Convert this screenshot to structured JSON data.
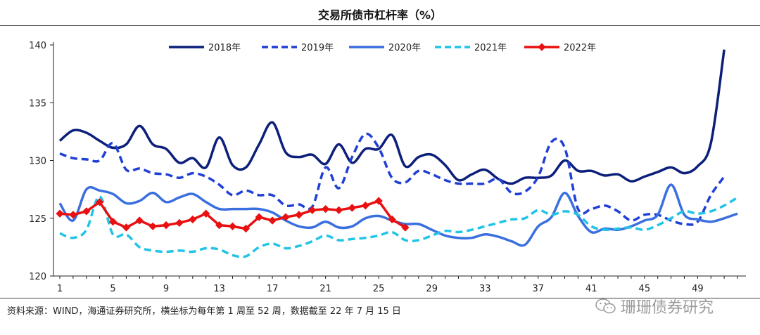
{
  "title": "交易所债市杠杆率（%）",
  "source": "资料来源：WIND，海通证券研究所，横坐标为每年第 1 周至 52 周，数据截至 22 年 7 月 15 日",
  "watermark": "珊珊债券研究",
  "chart_data": {
    "type": "line",
    "title": "交易所债市杠杆率（%）",
    "xlabel": "",
    "ylabel": "",
    "ylim": [
      120,
      140
    ],
    "xlim": [
      1,
      52
    ],
    "x_ticks": [
      1,
      5,
      9,
      13,
      17,
      21,
      25,
      29,
      33,
      37,
      41,
      45,
      49
    ],
    "y_ticks": [
      120,
      125,
      130,
      135,
      140
    ],
    "grid": false,
    "legend_position": "top",
    "series": [
      {
        "name": "2018年",
        "color": "#0c1f7a",
        "style": "solid",
        "x": [
          1,
          2,
          3,
          4,
          5,
          6,
          7,
          8,
          9,
          10,
          11,
          12,
          13,
          14,
          15,
          16,
          17,
          18,
          19,
          20,
          21,
          22,
          23,
          24,
          25,
          26,
          27,
          28,
          29,
          30,
          31,
          32,
          33,
          34,
          35,
          36,
          37,
          38,
          39,
          40,
          41,
          42,
          43,
          44,
          45,
          46,
          47,
          48,
          49,
          50,
          51
        ],
        "values": [
          131.7,
          132.6,
          132.4,
          131.7,
          131.1,
          131.4,
          133.0,
          131.4,
          131.0,
          129.8,
          130.2,
          129.4,
          132.0,
          129.6,
          129.4,
          131.4,
          133.3,
          130.7,
          130.3,
          130.5,
          129.7,
          131.4,
          129.8,
          131.0,
          131.0,
          132.2,
          129.5,
          130.3,
          130.5,
          129.6,
          128.3,
          128.8,
          129.2,
          128.4,
          128.0,
          128.5,
          128.5,
          128.7,
          130.0,
          129.1,
          129.1,
          128.7,
          128.8,
          128.2,
          128.6,
          129.0,
          129.4,
          128.9,
          129.5,
          131.5,
          139.6
        ]
      },
      {
        "name": "2019年",
        "color": "#1f3fd6",
        "style": "dashed",
        "x": [
          1,
          2,
          3,
          4,
          5,
          6,
          7,
          8,
          9,
          10,
          11,
          12,
          13,
          14,
          15,
          16,
          17,
          18,
          19,
          20,
          21,
          22,
          23,
          24,
          25,
          26,
          27,
          28,
          29,
          30,
          31,
          32,
          33,
          34,
          35,
          36,
          37,
          38,
          39,
          40,
          41,
          42,
          43,
          44,
          45,
          46,
          47,
          48,
          49,
          50,
          51
        ],
        "values": [
          130.6,
          130.2,
          130.1,
          130.0,
          131.5,
          129.2,
          129.3,
          128.9,
          128.8,
          128.5,
          128.9,
          128.6,
          127.9,
          127.0,
          127.4,
          127.0,
          127.0,
          126.1,
          126.2,
          126.0,
          129.4,
          127.6,
          130.3,
          132.3,
          131.1,
          128.5,
          128.1,
          129.1,
          128.8,
          128.3,
          128.0,
          128.0,
          128.0,
          128.4,
          127.2,
          127.3,
          128.6,
          131.6,
          131.1,
          125.8,
          125.8,
          126.1,
          125.6,
          124.8,
          125.3,
          125.3,
          124.8,
          124.5,
          124.7,
          127.0,
          128.6
        ]
      },
      {
        "name": "2020年",
        "color": "#3a6fe0",
        "style": "solid",
        "x": [
          1,
          2,
          3,
          4,
          5,
          6,
          7,
          8,
          9,
          10,
          11,
          12,
          13,
          14,
          15,
          16,
          17,
          18,
          19,
          20,
          21,
          22,
          23,
          24,
          25,
          26,
          27,
          28,
          29,
          30,
          31,
          32,
          33,
          34,
          35,
          36,
          37,
          38,
          39,
          40,
          41,
          42,
          43,
          44,
          45,
          46,
          47,
          48,
          49,
          50,
          51,
          52
        ],
        "values": [
          126.3,
          124.8,
          127.5,
          127.4,
          127.1,
          126.3,
          126.5,
          127.2,
          126.4,
          126.8,
          127.1,
          126.4,
          125.8,
          125.8,
          125.8,
          125.8,
          125.5,
          124.8,
          124.3,
          124.2,
          124.7,
          124.2,
          124.3,
          125.0,
          125.2,
          124.8,
          124.5,
          124.5,
          124.0,
          123.5,
          123.3,
          123.3,
          123.6,
          123.4,
          123.0,
          122.7,
          124.3,
          125.1,
          127.2,
          125.2,
          123.8,
          124.1,
          124.0,
          124.3,
          124.8,
          125.3,
          127.9,
          125.3,
          124.9,
          124.7,
          125.0,
          125.4
        ]
      },
      {
        "name": "2021年",
        "color": "#21c4e6",
        "style": "dashed",
        "x": [
          1,
          2,
          3,
          4,
          5,
          6,
          7,
          8,
          9,
          10,
          11,
          12,
          13,
          14,
          15,
          16,
          17,
          18,
          19,
          20,
          21,
          22,
          23,
          24,
          25,
          26,
          27,
          28,
          29,
          30,
          31,
          32,
          33,
          34,
          35,
          36,
          37,
          38,
          39,
          40,
          41,
          42,
          43,
          44,
          45,
          46,
          47,
          48,
          49,
          50,
          51,
          52
        ],
        "values": [
          123.7,
          123.3,
          124.0,
          126.9,
          123.6,
          123.6,
          122.5,
          122.2,
          122.1,
          122.2,
          122.1,
          122.4,
          122.3,
          121.8,
          121.7,
          122.5,
          122.8,
          122.4,
          122.6,
          123.0,
          123.5,
          123.1,
          123.2,
          123.3,
          123.5,
          123.8,
          123.1,
          123.1,
          123.5,
          123.9,
          123.8,
          124.0,
          124.3,
          124.6,
          124.9,
          125.0,
          125.7,
          125.3,
          125.6,
          125.3,
          124.3,
          124.0,
          124.1,
          124.2,
          124.0,
          124.4,
          125.0,
          125.6,
          125.4,
          125.6,
          126.1,
          126.8
        ]
      },
      {
        "name": "2022年",
        "color": "#e81010",
        "style": "solid-markers",
        "x": [
          1,
          2,
          3,
          4,
          5,
          6,
          7,
          8,
          9,
          10,
          11,
          12,
          13,
          14,
          15,
          16,
          17,
          18,
          19,
          20,
          21,
          22,
          23,
          24,
          25,
          26,
          27
        ],
        "values": [
          125.4,
          125.3,
          125.6,
          126.4,
          124.7,
          124.2,
          124.8,
          124.3,
          124.4,
          124.6,
          124.9,
          125.4,
          124.4,
          124.3,
          124.1,
          125.1,
          124.8,
          125.1,
          125.3,
          125.7,
          125.8,
          125.7,
          125.9,
          126.1,
          126.5,
          124.9,
          124.2
        ]
      }
    ]
  }
}
